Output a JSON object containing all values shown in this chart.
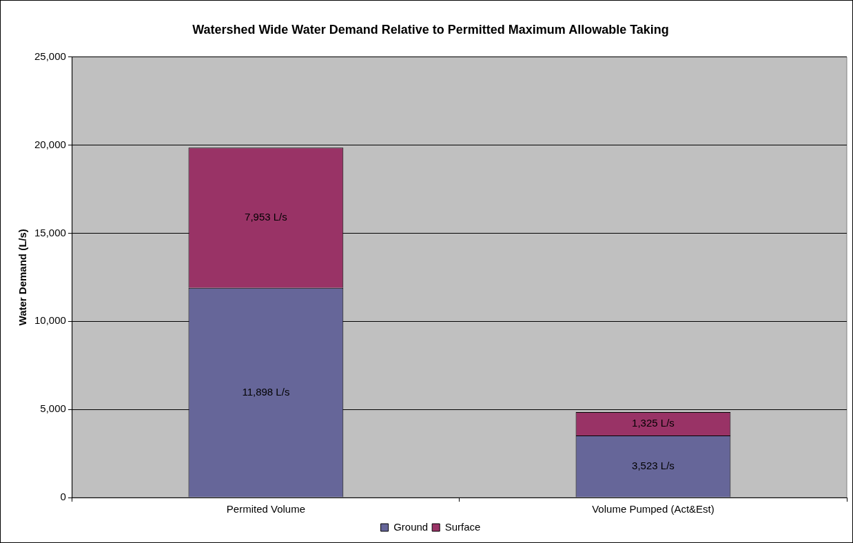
{
  "chart_data": {
    "type": "bar",
    "title": "Watershed Wide Water Demand Relative to Permitted Maximum Allowable Taking",
    "ylabel": "Water Demand (L/s)",
    "categories": [
      "Permited Volume",
      "Volume Pumped (Act&Est)"
    ],
    "stacked": true,
    "series": [
      {
        "name": "Ground",
        "color": "#666699",
        "values": [
          11898,
          3523
        ],
        "value_labels": [
          "11,898 L/s",
          "3,523 L/s"
        ]
      },
      {
        "name": "Surface",
        "color": "#993366",
        "values": [
          7953,
          1325
        ],
        "value_labels": [
          "7,953 L/s",
          "1,325 L/s"
        ]
      }
    ],
    "ylim": [
      0,
      25000
    ],
    "yticks": [
      {
        "value": 0,
        "label": "0"
      },
      {
        "value": 5000,
        "label": "5,000"
      },
      {
        "value": 10000,
        "label": "10,000"
      },
      {
        "value": 15000,
        "label": "15,000"
      },
      {
        "value": 20000,
        "label": "20,000"
      },
      {
        "value": 25000,
        "label": "25,000"
      }
    ],
    "grid": "y",
    "legend": "bottom"
  }
}
